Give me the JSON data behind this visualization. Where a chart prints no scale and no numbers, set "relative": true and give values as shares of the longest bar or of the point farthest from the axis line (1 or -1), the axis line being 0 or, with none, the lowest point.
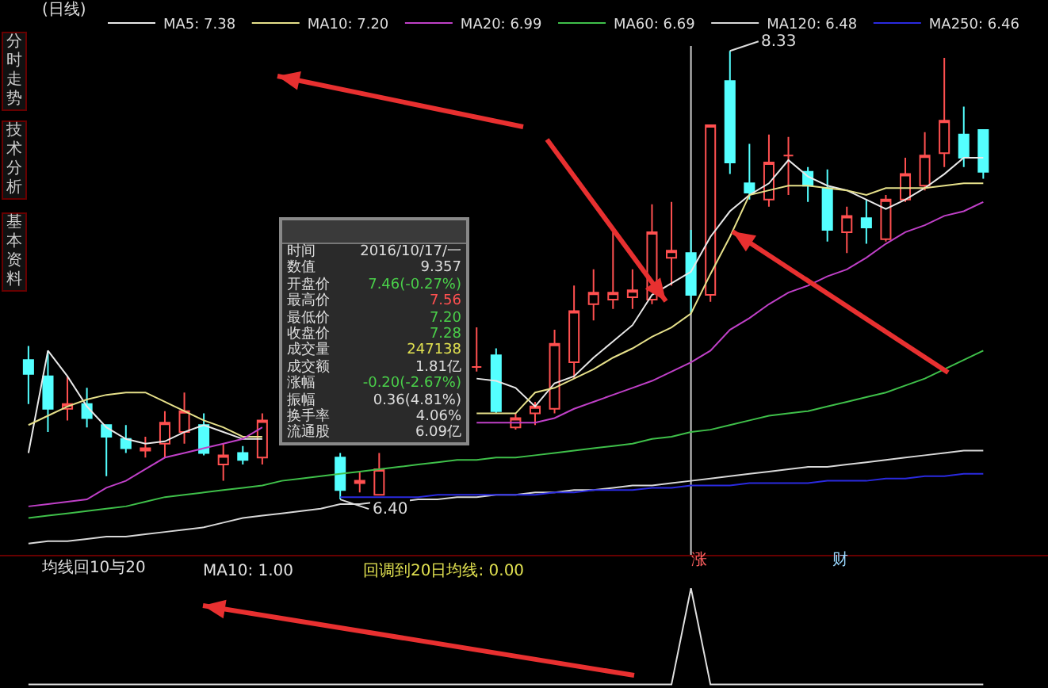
{
  "chart_data": [
    {
      "type": "candlestick",
      "title": "(日线)",
      "categories": [
        null,
        null,
        null,
        null,
        null,
        null,
        null,
        null,
        null,
        null,
        null,
        null,
        null,
        null,
        null,
        null,
        null,
        null,
        null,
        null,
        null,
        null,
        null,
        null,
        null,
        null,
        null,
        null,
        null,
        null,
        null,
        null,
        null,
        null,
        null,
        null,
        null,
        null,
        null,
        null,
        null,
        null,
        null,
        null,
        null,
        null,
        null,
        null,
        null,
        null
      ],
      "ohlc": [
        [
          7.0,
          7.06,
          6.81,
          6.94
        ],
        [
          6.93,
          7.04,
          6.69,
          6.79
        ],
        [
          6.79,
          6.93,
          6.74,
          6.81
        ],
        [
          6.81,
          6.88,
          6.71,
          6.75
        ],
        [
          6.72,
          6.72,
          6.5,
          6.67
        ],
        [
          6.66,
          6.72,
          6.6,
          6.62
        ],
        [
          6.61,
          6.67,
          6.58,
          6.62
        ],
        [
          6.64,
          6.78,
          6.58,
          6.73
        ],
        [
          6.69,
          6.86,
          6.64,
          6.78
        ],
        [
          6.72,
          6.77,
          6.59,
          6.6
        ],
        [
          6.55,
          6.64,
          6.48,
          6.59
        ],
        [
          6.6,
          6.63,
          6.55,
          6.57
        ],
        [
          6.58,
          6.77,
          6.55,
          6.74
        ],
        null,
        null,
        null,
        [
          6.58,
          6.6,
          6.4,
          6.44
        ],
        [
          6.47,
          6.52,
          6.43,
          6.48
        ],
        [
          6.42,
          6.6,
          6.42,
          6.53
        ],
        null,
        null,
        null,
        null,
        [
          6.97,
          7.14,
          6.95,
          6.97
        ],
        [
          7.02,
          7.05,
          6.77,
          6.78
        ],
        [
          6.71,
          6.77,
          6.7,
          6.75
        ],
        [
          6.77,
          6.82,
          6.72,
          6.8
        ],
        [
          6.79,
          7.13,
          6.77,
          7.07
        ],
        [
          6.99,
          7.32,
          6.92,
          7.21
        ],
        [
          7.24,
          7.39,
          7.17,
          7.29
        ],
        [
          7.26,
          7.55,
          7.22,
          7.29
        ],
        [
          7.27,
          7.39,
          7.22,
          7.3
        ],
        [
          7.26,
          7.67,
          7.24,
          7.55
        ],
        [
          7.44,
          7.68,
          7.32,
          7.47
        ],
        [
          7.46,
          7.56,
          7.2,
          7.28
        ],
        [
          7.28,
          8.01,
          7.25,
          8.01
        ],
        [
          8.2,
          8.33,
          7.8,
          7.85
        ],
        [
          7.76,
          7.93,
          7.69,
          7.72
        ],
        [
          7.69,
          7.97,
          7.66,
          7.85
        ],
        [
          7.88,
          7.96,
          7.71,
          7.88
        ],
        [
          7.81,
          7.83,
          7.68,
          7.75
        ],
        [
          7.74,
          7.82,
          7.51,
          7.56
        ],
        [
          7.55,
          7.66,
          7.46,
          7.62
        ],
        [
          7.61,
          7.69,
          7.5,
          7.57
        ],
        [
          7.52,
          7.71,
          7.51,
          7.69
        ],
        [
          7.69,
          7.87,
          7.68,
          7.8
        ],
        [
          7.75,
          7.98,
          7.73,
          7.88
        ],
        [
          7.89,
          8.3,
          7.83,
          8.03
        ],
        [
          7.97,
          8.09,
          7.83,
          7.87
        ],
        [
          7.99,
          7.99,
          7.78,
          7.81
        ]
      ],
      "series": [
        {
          "type": "line",
          "name": "MA5: 7.38",
          "color": "#e8e8e8",
          "values": [
            6.6,
            7.04,
            6.93,
            6.8,
            6.71,
            6.66,
            6.64,
            6.65,
            6.69,
            6.72,
            6.69,
            6.66,
            6.66,
            null,
            null,
            null,
            null,
            null,
            null,
            null,
            null,
            null,
            null,
            6.92,
            6.91,
            6.88,
            6.8,
            6.9,
            6.93,
            7.01,
            7.08,
            7.15,
            7.28,
            7.33,
            7.38,
            7.53,
            7.64,
            7.71,
            7.76,
            7.86,
            7.79,
            7.75,
            7.73,
            7.69,
            7.65,
            7.69,
            7.74,
            7.8,
            7.87,
            7.87
          ]
        },
        {
          "type": "line",
          "name": "MA10: 7.20",
          "color": "#e6e08a",
          "values": [
            6.72,
            6.76,
            6.8,
            6.83,
            6.85,
            6.86,
            6.86,
            6.82,
            6.78,
            6.74,
            6.71,
            6.67,
            6.67,
            null,
            null,
            null,
            null,
            null,
            null,
            null,
            null,
            null,
            null,
            6.77,
            6.77,
            6.77,
            6.86,
            6.88,
            6.92,
            6.96,
            7.01,
            7.05,
            7.1,
            7.14,
            7.2,
            7.37,
            7.53,
            7.71,
            7.73,
            7.75,
            7.75,
            7.74,
            7.73,
            7.71,
            7.74,
            7.74,
            7.74,
            7.75,
            7.76,
            7.76
          ]
        },
        {
          "type": "line",
          "name": "MA20: 6.99",
          "color": "#c040c8",
          "values": [
            6.37,
            6.38,
            6.39,
            6.4,
            6.45,
            6.48,
            6.53,
            6.58,
            6.6,
            6.62,
            6.64,
            6.66,
            6.71,
            null,
            null,
            null,
            null,
            null,
            null,
            null,
            null,
            null,
            null,
            6.73,
            6.73,
            6.73,
            6.73,
            6.75,
            6.79,
            6.82,
            6.85,
            6.88,
            6.91,
            6.95,
            6.99,
            7.04,
            7.13,
            7.18,
            7.24,
            7.29,
            7.32,
            7.36,
            7.39,
            7.44,
            7.5,
            7.55,
            7.58,
            7.62,
            7.64,
            7.68
          ]
        },
        {
          "type": "line",
          "name": "MA60: 6.69",
          "color": "#3fc04a",
          "values": [
            6.32,
            6.33,
            6.34,
            6.35,
            6.36,
            6.37,
            6.39,
            6.41,
            6.42,
            6.43,
            6.44,
            6.45,
            6.46,
            6.48,
            6.49,
            6.5,
            6.51,
            6.52,
            6.53,
            6.54,
            6.55,
            6.56,
            6.57,
            6.57,
            6.58,
            6.58,
            6.59,
            6.6,
            6.61,
            6.62,
            6.63,
            6.64,
            6.66,
            6.67,
            6.69,
            6.7,
            6.72,
            6.74,
            6.76,
            6.77,
            6.78,
            6.8,
            6.82,
            6.84,
            6.86,
            6.89,
            6.92,
            6.96,
            7.0,
            7.04
          ]
        },
        {
          "type": "line",
          "name": "MA120: 6.48",
          "color": "#d8d8d8",
          "values": [
            6.21,
            6.22,
            6.22,
            6.23,
            6.24,
            6.24,
            6.25,
            6.26,
            6.27,
            6.28,
            6.3,
            6.32,
            6.33,
            6.34,
            6.35,
            6.36,
            6.38,
            6.38,
            6.39,
            6.39,
            6.4,
            6.4,
            6.41,
            6.41,
            6.42,
            6.42,
            6.43,
            6.43,
            6.44,
            6.44,
            6.45,
            6.46,
            6.46,
            6.47,
            6.48,
            6.49,
            6.5,
            6.51,
            6.52,
            6.53,
            6.54,
            6.54,
            6.55,
            6.56,
            6.57,
            6.58,
            6.59,
            6.6,
            6.61,
            6.61
          ]
        },
        {
          "type": "line",
          "name": "MA250: 6.46",
          "color": "#2a2ae0",
          "values": [
            null,
            null,
            null,
            null,
            null,
            null,
            null,
            null,
            null,
            null,
            null,
            null,
            null,
            null,
            null,
            null,
            6.41,
            6.41,
            6.41,
            6.41,
            6.41,
            6.42,
            6.42,
            6.42,
            6.42,
            6.42,
            6.42,
            6.43,
            6.43,
            6.44,
            6.44,
            6.44,
            6.45,
            6.45,
            6.46,
            6.46,
            6.46,
            6.47,
            6.47,
            6.47,
            6.47,
            6.48,
            6.48,
            6.48,
            6.49,
            6.49,
            6.5,
            6.5,
            6.51,
            6.51
          ]
        }
      ],
      "legend": "top",
      "annotations": [
        "8.33",
        "6.40",
        "涨",
        "财",
        "分时走势",
        "技术分析",
        "基本资料",
        "时间",
        "2016/10/17/一",
        "数值",
        "9.357",
        "开盘价",
        "7.46(-0.27%)",
        "最高价",
        "7.56",
        "最低价",
        "7.20",
        "收盘价",
        "7.28",
        "成交量",
        "247138",
        "成交额",
        "1.81亿",
        "涨幅",
        "-0.20(-2.67%)",
        "振幅",
        "0.36(4.81%)",
        "换手率",
        "4.06%",
        "流通股",
        "6.09亿"
      ]
    },
    {
      "type": "line",
      "title": "均线回10与20",
      "relative": true,
      "categories": [
        null,
        null,
        null,
        null,
        null,
        null,
        null,
        null,
        null,
        null,
        null,
        null,
        null,
        null,
        null,
        null,
        null,
        null,
        null,
        null,
        null,
        null,
        null,
        null,
        null,
        null,
        null,
        null,
        null,
        null,
        null,
        null,
        null,
        null,
        null,
        null,
        null,
        null,
        null,
        null,
        null,
        null,
        null,
        null,
        null,
        null,
        null,
        null,
        null,
        null
      ],
      "series": [
        {
          "name": "MA10: 1.00",
          "color": "#e0e0e0",
          "values": [
            0,
            0,
            0,
            0,
            0,
            0,
            0,
            0,
            0,
            0,
            0,
            0,
            0,
            0,
            0,
            0,
            0,
            0,
            0,
            0,
            0,
            0,
            0,
            0,
            0,
            0,
            0,
            0,
            0,
            0,
            0,
            0,
            0,
            0,
            1,
            0,
            0,
            0,
            0,
            0,
            0,
            0,
            0,
            0,
            0,
            0,
            0,
            0,
            0,
            0
          ]
        }
      ],
      "annotations": [
        "回调到20日均线: 0.00"
      ]
    }
  ]
}
